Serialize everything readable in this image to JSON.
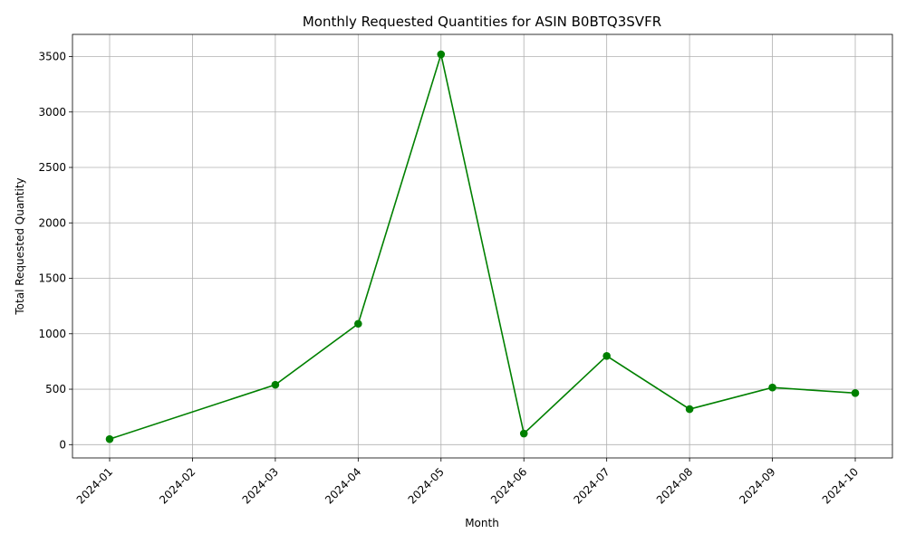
{
  "chart_data": {
    "type": "line",
    "title": "Monthly Requested Quantities for ASIN B0BTQ3SVFR",
    "xlabel": "Month",
    "ylabel": "Total Requested Quantity",
    "x_ticks": [
      "2024-01",
      "2024-02",
      "2024-03",
      "2024-04",
      "2024-05",
      "2024-06",
      "2024-07",
      "2024-08",
      "2024-09",
      "2024-10"
    ],
    "y_ticks": [
      0,
      500,
      1000,
      1500,
      2000,
      2500,
      3000,
      3500
    ],
    "ylim": [
      -120,
      3700
    ],
    "grid": true,
    "series": [
      {
        "color": "#008000",
        "marker": "circle",
        "points": [
          {
            "x": "2024-01",
            "y": 50
          },
          {
            "x": "2024-03",
            "y": 540
          },
          {
            "x": "2024-04",
            "y": 1090
          },
          {
            "x": "2024-05",
            "y": 3520
          },
          {
            "x": "2024-06",
            "y": 100
          },
          {
            "x": "2024-07",
            "y": 800
          },
          {
            "x": "2024-08",
            "y": 320
          },
          {
            "x": "2024-09",
            "y": 515
          },
          {
            "x": "2024-10",
            "y": 465
          }
        ]
      }
    ]
  }
}
